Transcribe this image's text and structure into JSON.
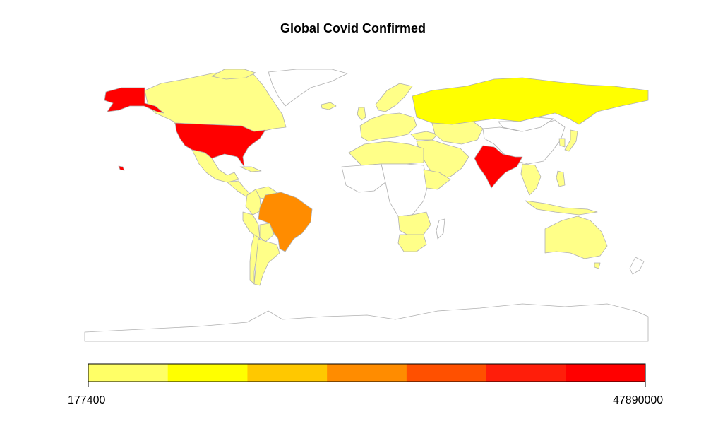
{
  "title": "Global Covid Confirmed",
  "legend": {
    "min_label": "177400",
    "max_label": "47890000",
    "colors": [
      "#ffff66",
      "#ffff00",
      "#ffc800",
      "#ff8c00",
      "#ff5000",
      "#ff1e0a",
      "#ff0000"
    ]
  },
  "regions": [
    {
      "name": "United States",
      "fill": "#ff0000"
    },
    {
      "name": "Alaska",
      "fill": "#ff0000"
    },
    {
      "name": "Hawaii",
      "fill": "#ff0000"
    },
    {
      "name": "India",
      "fill": "#ff0000"
    },
    {
      "name": "Brazil",
      "fill": "#ff8c00"
    },
    {
      "name": "Russia",
      "fill": "#ffff00"
    },
    {
      "name": "Canada",
      "fill": "#ffff88"
    },
    {
      "name": "Greenland",
      "fill": "#ffffff"
    },
    {
      "name": "Mexico",
      "fill": "#ffff88"
    },
    {
      "name": "Central America",
      "fill": "#ffff88"
    },
    {
      "name": "Cuba",
      "fill": "#ffff88"
    },
    {
      "name": "Colombia",
      "fill": "#ffff88"
    },
    {
      "name": "Venezuela",
      "fill": "#ffff88"
    },
    {
      "name": "Peru",
      "fill": "#ffff88"
    },
    {
      "name": "Bolivia",
      "fill": "#ffff88"
    },
    {
      "name": "Chile",
      "fill": "#ffff88"
    },
    {
      "name": "Argentina",
      "fill": "#ffff88"
    },
    {
      "name": "Western Europe",
      "fill": "#ffff88"
    },
    {
      "name": "United Kingdom",
      "fill": "#ffff88"
    },
    {
      "name": "Scandinavia",
      "fill": "#ffff88"
    },
    {
      "name": "Iceland",
      "fill": "#ffff88"
    },
    {
      "name": "Turkey",
      "fill": "#ffff88"
    },
    {
      "name": "Middle East",
      "fill": "#ffff88"
    },
    {
      "name": "Central Asia",
      "fill": "#ffff88"
    },
    {
      "name": "China",
      "fill": "#ffffff"
    },
    {
      "name": "Mongolia",
      "fill": "#ffffff"
    },
    {
      "name": "Japan",
      "fill": "#ffff88"
    },
    {
      "name": "South Korea",
      "fill": "#ffff88"
    },
    {
      "name": "Southeast Asia",
      "fill": "#ffff88"
    },
    {
      "name": "Indonesia",
      "fill": "#ffff88"
    },
    {
      "name": "Philippines",
      "fill": "#ffff88"
    },
    {
      "name": "North Africa",
      "fill": "#ffff88"
    },
    {
      "name": "West Africa",
      "fill": "#ffffff"
    },
    {
      "name": "Central Africa",
      "fill": "#ffffff"
    },
    {
      "name": "Ethiopia",
      "fill": "#ffff88"
    },
    {
      "name": "Southern Africa",
      "fill": "#ffff88"
    },
    {
      "name": "South Africa",
      "fill": "#ffff88"
    },
    {
      "name": "Madagascar",
      "fill": "#ffffff"
    },
    {
      "name": "Australia",
      "fill": "#ffff88"
    },
    {
      "name": "New Zealand",
      "fill": "#ffffff"
    },
    {
      "name": "Antarctica",
      "fill": "#ffffff"
    }
  ]
}
